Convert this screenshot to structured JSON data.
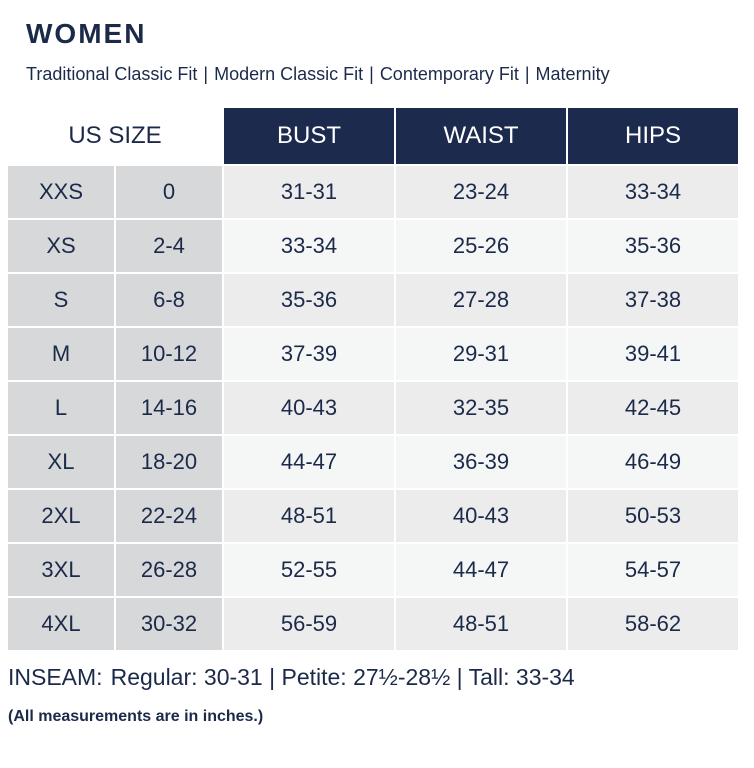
{
  "title": "WOMEN",
  "fits": [
    "Traditional Classic Fit",
    "Modern Classic Fit",
    "Contemporary Fit",
    "Maternity"
  ],
  "separator": "|",
  "table": {
    "size_header": "US SIZE",
    "columns": [
      "BUST",
      "WAIST",
      "HIPS"
    ],
    "rows": [
      {
        "size": "XXS",
        "num": "0",
        "bust": "31-31",
        "waist": "23-24",
        "hips": "33-34"
      },
      {
        "size": "XS",
        "num": "2-4",
        "bust": "33-34",
        "waist": "25-26",
        "hips": "35-36"
      },
      {
        "size": "S",
        "num": "6-8",
        "bust": "35-36",
        "waist": "27-28",
        "hips": "37-38"
      },
      {
        "size": "M",
        "num": "10-12",
        "bust": "37-39",
        "waist": "29-31",
        "hips": "39-41"
      },
      {
        "size": "L",
        "num": "14-16",
        "bust": "40-43",
        "waist": "32-35",
        "hips": "42-45"
      },
      {
        "size": "XL",
        "num": "18-20",
        "bust": "44-47",
        "waist": "36-39",
        "hips": "46-49"
      },
      {
        "size": "2XL",
        "num": "22-24",
        "bust": "48-51",
        "waist": "40-43",
        "hips": "50-53"
      },
      {
        "size": "3XL",
        "num": "26-28",
        "bust": "52-55",
        "waist": "44-47",
        "hips": "54-57"
      },
      {
        "size": "4XL",
        "num": "30-32",
        "bust": "56-59",
        "waist": "48-51",
        "hips": "58-62"
      }
    ]
  },
  "inseam": {
    "label": "INSEAM:",
    "text": "Regular: 30-31 | Petite: 27½-28½ | Tall: 33-34"
  },
  "note": "(All measurements are in inches.)"
}
